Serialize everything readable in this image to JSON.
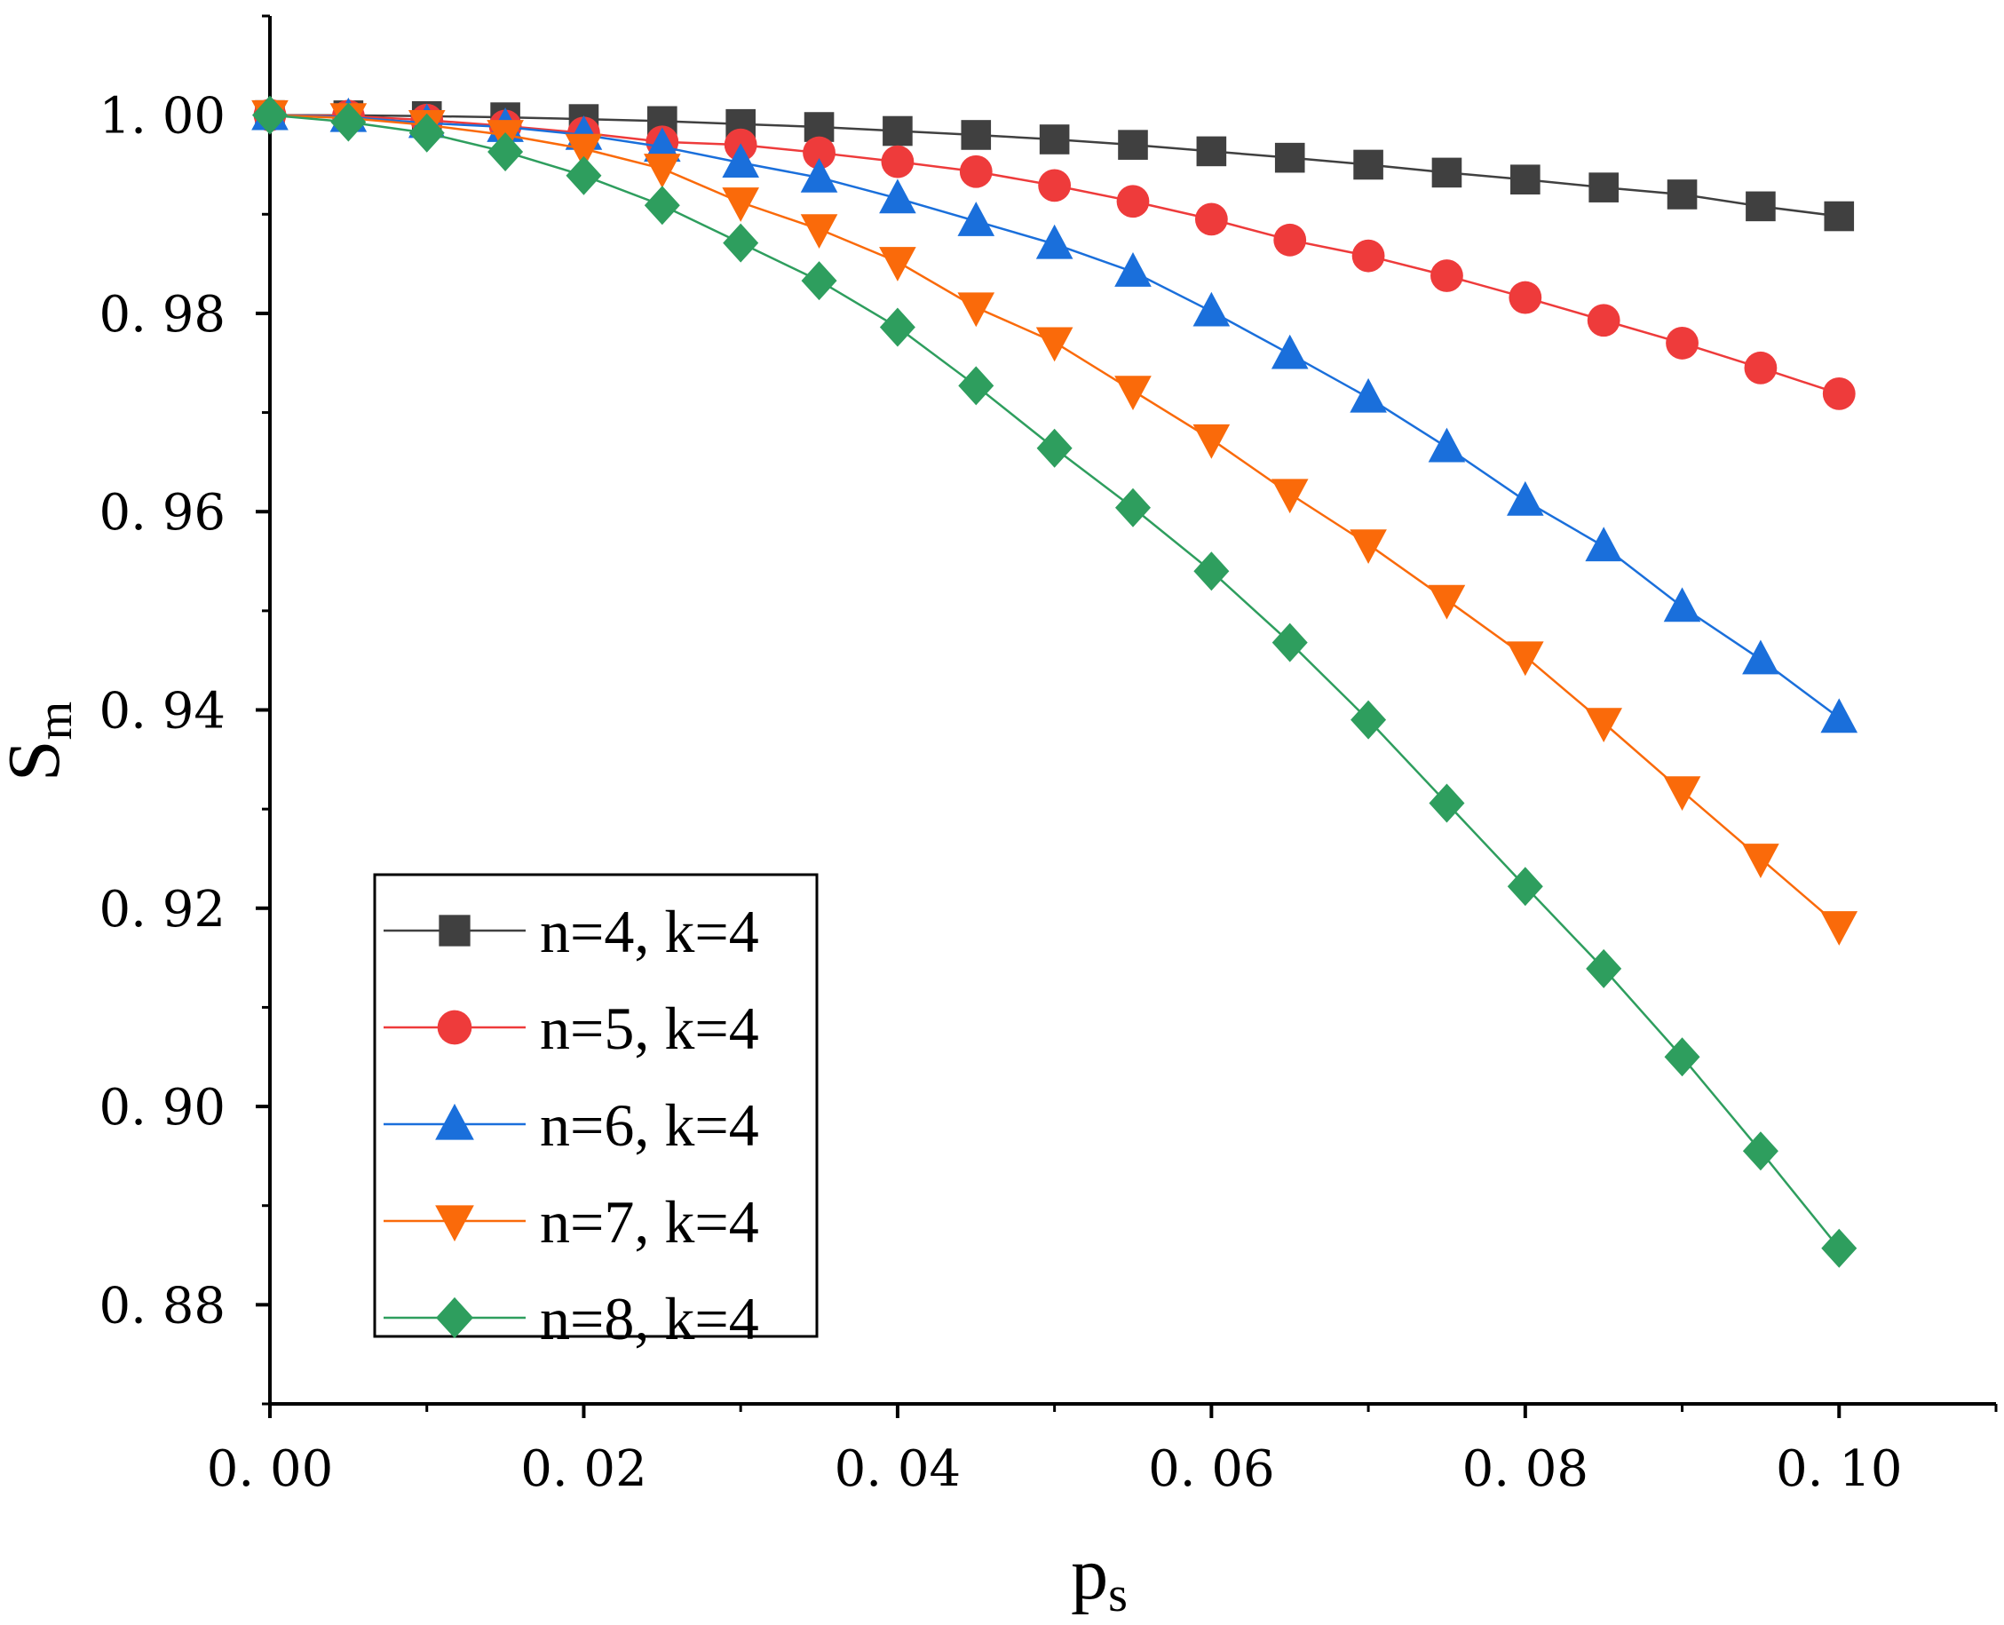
{
  "chart_data": {
    "type": "line",
    "title": "",
    "xlabel": "p",
    "xlabel_sub": "s",
    "ylabel": "S",
    "ylabel_sub": "m",
    "xlim": [
      0.0,
      0.11
    ],
    "ylim": [
      0.87,
      1.01
    ],
    "x_ticks": [
      0.0,
      0.02,
      0.04,
      0.06,
      0.08,
      0.1
    ],
    "x_tick_labels": [
      "0. 00",
      "0. 02",
      "0. 04",
      "0. 06",
      "0. 08",
      "0. 10"
    ],
    "y_ticks": [
      0.88,
      0.9,
      0.92,
      0.94,
      0.96,
      0.98,
      1.0
    ],
    "y_tick_labels": [
      "0. 88",
      "0. 90",
      "0. 92",
      "0. 94",
      "0. 96",
      "0. 98",
      "1. 00"
    ],
    "grid": false,
    "legend_position": "bottom-left",
    "x": [
      0.0,
      0.005,
      0.01,
      0.015,
      0.02,
      0.025,
      0.03,
      0.035,
      0.04,
      0.045,
      0.05,
      0.055,
      0.06,
      0.065,
      0.07,
      0.075,
      0.08,
      0.085,
      0.09,
      0.095,
      0.1
    ],
    "series": [
      {
        "name": "n=4, k=4",
        "color": "#404040",
        "marker": "square",
        "values": [
          1.0,
          0.99998,
          0.9999,
          0.99978,
          0.9996,
          0.9994,
          0.9991,
          0.9988,
          0.9984,
          0.998,
          0.99755,
          0.997,
          0.99635,
          0.9957,
          0.995,
          0.9942,
          0.9935,
          0.9927,
          0.992,
          0.9908,
          0.9898
        ]
      },
      {
        "name": "n=5, k=4",
        "color": "#ee3b3b",
        "marker": "circle",
        "values": [
          1.0,
          0.9999,
          0.9995,
          0.9989,
          0.9982,
          0.9973,
          0.997,
          0.9962,
          0.9953,
          0.9943,
          0.9929,
          0.9913,
          0.9895,
          0.9874,
          0.9858,
          0.9838,
          0.9816,
          0.9793,
          0.977,
          0.9745,
          0.9719
        ]
      },
      {
        "name": "n=6, k=4",
        "color": "#1a6fdb",
        "marker": "triangle-up",
        "values": [
          1.0,
          0.9998,
          0.9992,
          0.9988,
          0.998,
          0.9968,
          0.9952,
          0.9937,
          0.9916,
          0.9893,
          0.987,
          0.9842,
          0.9802,
          0.9759,
          0.9715,
          0.9665,
          0.9611,
          0.9565,
          0.9504,
          0.9451,
          0.9392
        ]
      },
      {
        "name": "n=7, k=4",
        "color": "#fa6a0a",
        "marker": "triangle-down",
        "values": [
          1.0,
          0.9997,
          0.999,
          0.998,
          0.9966,
          0.9946,
          0.9912,
          0.9885,
          0.9852,
          0.9806,
          0.9771,
          0.9722,
          0.9673,
          0.9618,
          0.9567,
          0.9511,
          0.9454,
          0.9387,
          0.9318,
          0.925,
          0.9182
        ]
      },
      {
        "name": "n=8, k=4",
        "color": "#2e9e5e",
        "marker": "diamond",
        "values": [
          1.0,
          0.9993,
          0.9982,
          0.9963,
          0.9939,
          0.9909,
          0.9871,
          0.9833,
          0.9786,
          0.9727,
          0.9664,
          0.9604,
          0.954,
          0.9468,
          0.939,
          0.9306,
          0.9222,
          0.9139,
          0.905,
          0.8955,
          0.8857
        ]
      }
    ]
  }
}
